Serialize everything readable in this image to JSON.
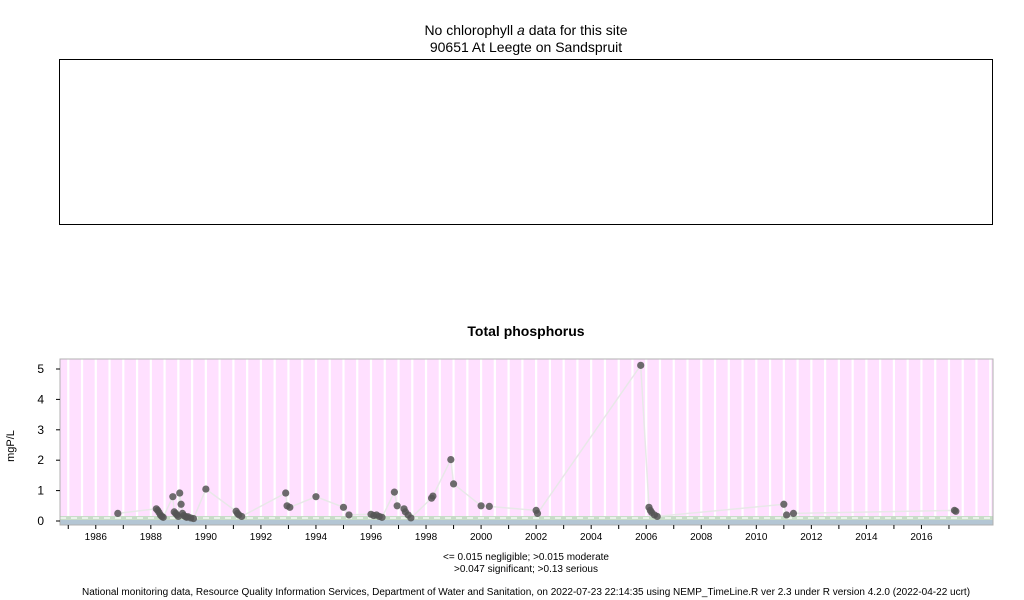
{
  "header": {
    "line1_prefix": "No chlorophyll",
    "line1_italic": "a",
    "line1_suffix": "data for this site",
    "site": "90651 At Leegte on Sandspruit"
  },
  "chart_data": {
    "type": "scatter",
    "title": "Total phosphorus",
    "ylabel": "mgP/L",
    "xlabel": "",
    "ylim": [
      0,
      5.3
    ],
    "xlim": [
      1984.7,
      2018.6
    ],
    "yticks": [
      0,
      1,
      2,
      3,
      4,
      5
    ],
    "xticks": [
      1986,
      1988,
      1990,
      1992,
      1994,
      1996,
      1998,
      2000,
      2002,
      2004,
      2006,
      2008,
      2010,
      2012,
      2014,
      2016
    ],
    "grid": "vertical",
    "background_color": "#ffe0ff",
    "point_color": "#555555",
    "line_color": "#e8e8e8",
    "band_colors": [
      "#c8dcc8",
      "#b4c6d4"
    ],
    "thresholds": {
      "negligible": 0.015,
      "moderate": 0.015,
      "significant": 0.047,
      "serious": 0.13
    },
    "points": [
      [
        1986.8,
        0.25
      ],
      [
        1988.2,
        0.4
      ],
      [
        1988.25,
        0.35
      ],
      [
        1988.3,
        0.28
      ],
      [
        1988.35,
        0.2
      ],
      [
        1988.4,
        0.15
      ],
      [
        1988.45,
        0.12
      ],
      [
        1988.8,
        0.8
      ],
      [
        1988.85,
        0.3
      ],
      [
        1988.9,
        0.25
      ],
      [
        1988.95,
        0.2
      ],
      [
        1989.0,
        0.15
      ],
      [
        1989.05,
        0.92
      ],
      [
        1989.1,
        0.55
      ],
      [
        1989.15,
        0.25
      ],
      [
        1989.2,
        0.18
      ],
      [
        1989.25,
        0.15
      ],
      [
        1989.3,
        0.12
      ],
      [
        1989.35,
        0.14
      ],
      [
        1989.45,
        0.1
      ],
      [
        1989.55,
        0.08
      ],
      [
        1990.0,
        1.05
      ],
      [
        1991.1,
        0.32
      ],
      [
        1991.15,
        0.25
      ],
      [
        1991.2,
        0.2
      ],
      [
        1991.3,
        0.15
      ],
      [
        1992.9,
        0.92
      ],
      [
        1992.95,
        0.5
      ],
      [
        1993.05,
        0.45
      ],
      [
        1994.0,
        0.8
      ],
      [
        1995.0,
        0.45
      ],
      [
        1995.2,
        0.2
      ],
      [
        1996.0,
        0.22
      ],
      [
        1996.1,
        0.18
      ],
      [
        1996.2,
        0.2
      ],
      [
        1996.3,
        0.15
      ],
      [
        1996.4,
        0.12
      ],
      [
        1996.85,
        0.95
      ],
      [
        1996.95,
        0.5
      ],
      [
        1997.2,
        0.4
      ],
      [
        1997.25,
        0.3
      ],
      [
        1997.35,
        0.2
      ],
      [
        1997.45,
        0.1
      ],
      [
        1998.2,
        0.75
      ],
      [
        1998.25,
        0.82
      ],
      [
        1998.9,
        2.02
      ],
      [
        1999.0,
        1.22
      ],
      [
        2000.0,
        0.5
      ],
      [
        2000.3,
        0.48
      ],
      [
        2002.0,
        0.35
      ],
      [
        2002.05,
        0.25
      ],
      [
        2005.8,
        5.12
      ],
      [
        2006.1,
        0.45
      ],
      [
        2006.15,
        0.35
      ],
      [
        2006.2,
        0.28
      ],
      [
        2006.3,
        0.2
      ],
      [
        2006.4,
        0.15
      ],
      [
        2011.0,
        0.55
      ],
      [
        2011.1,
        0.2
      ],
      [
        2011.35,
        0.25
      ],
      [
        2017.2,
        0.35
      ],
      [
        2017.25,
        0.32
      ]
    ]
  },
  "legend": {
    "line1": "<= 0.015 negligible; >0.015 moderate",
    "line2": ">0.047 significant; >0.13 serious"
  },
  "footer": "National monitoring data, Resource Quality Information Services, Department of Water and Sanitation, on 2022-07-23 22:14:35 using NEMP_TimeLine.R ver 2.3 under R version 4.2.0 (2022-04-22 ucrt)"
}
